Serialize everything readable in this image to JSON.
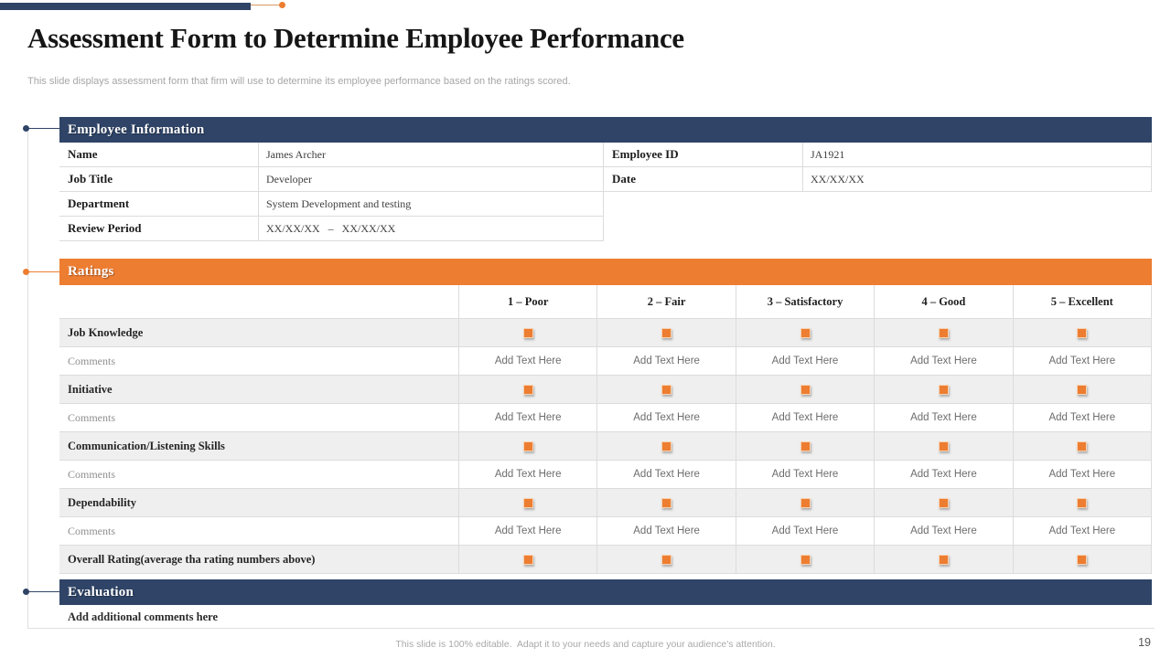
{
  "slide": {
    "title": "Assessment Form to Determine Employee Performance",
    "subtitle": "This slide displays assessment form that firm will use to determine its employee performance based on the ratings scored.",
    "footer": "This slide is 100% editable.  Adapt it to your needs and capture your audience's attention.",
    "page_number": "19"
  },
  "colors": {
    "navy": "#2F4467",
    "orange": "#ED7D31",
    "accent_line": "#D79A62",
    "row_gray": "#EFEFEF",
    "border": "#DCDCDC"
  },
  "employee_information": {
    "header": "Employee Information",
    "left_fields": [
      {
        "label": "Name",
        "value": "James Archer"
      },
      {
        "label": "Job Title",
        "value": "Developer"
      },
      {
        "label": "Department",
        "value": "System Development and testing"
      },
      {
        "label": "Review Period",
        "value": "XX/XX/XX   –   XX/XX/XX"
      }
    ],
    "right_fields": [
      {
        "label": "Employee ID",
        "value": "JA1921"
      },
      {
        "label": "Date",
        "value": "XX/XX/XX"
      }
    ]
  },
  "ratings": {
    "header": "Ratings",
    "scale_headers": [
      "1 – Poor",
      "2 – Fair",
      "3 – Satisfactory",
      "4 – Good",
      "5 – Excellent"
    ],
    "criteria": [
      "Job Knowledge",
      "Initiative",
      "Communication/Listening Skills",
      "Dependability"
    ],
    "overall_label": "Overall Rating(average tha rating numbers above)",
    "comments_label": "Comments",
    "add_text_placeholder": "Add Text Here"
  },
  "evaluation": {
    "header": "Evaluation",
    "note": "Add additional comments here"
  }
}
